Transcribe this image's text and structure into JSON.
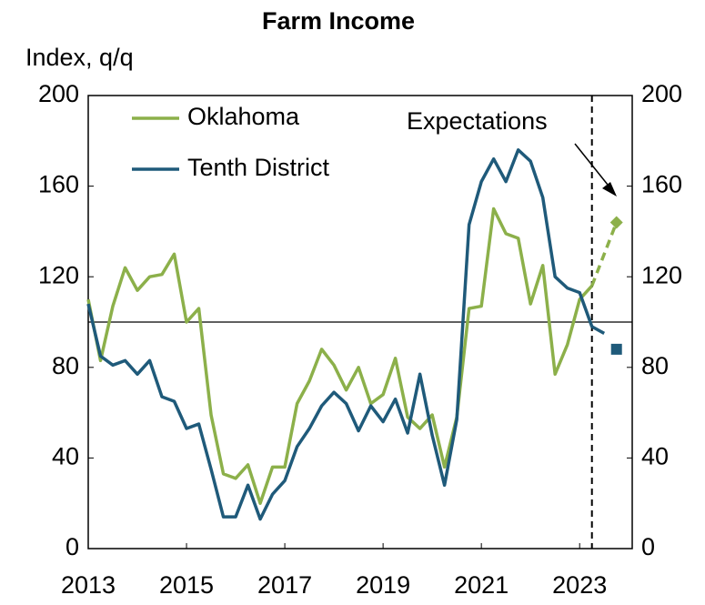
{
  "chart_data": {
    "type": "line",
    "title": "Farm Income",
    "y_label": "Index, q/q",
    "x": [
      2013,
      2013.25,
      2013.5,
      2013.75,
      2014,
      2014.25,
      2014.5,
      2014.75,
      2015,
      2015.25,
      2015.5,
      2015.75,
      2016,
      2016.25,
      2016.5,
      2016.75,
      2017,
      2017.25,
      2017.5,
      2017.75,
      2018,
      2018.25,
      2018.5,
      2018.75,
      2019,
      2019.25,
      2019.5,
      2019.75,
      2020,
      2020.25,
      2020.5,
      2020.75,
      2021,
      2021.25,
      2021.5,
      2021.75,
      2022,
      2022.25,
      2022.5,
      2022.75,
      2023,
      2023.25,
      2023.5
    ],
    "series": [
      {
        "name": "Oklahoma",
        "color": "#8cb04a",
        "values": [
          110,
          83,
          107,
          124,
          114,
          120,
          121,
          130,
          100,
          106,
          59,
          33,
          31,
          37,
          20,
          36,
          36,
          64,
          74,
          88,
          81,
          70,
          80,
          64,
          68,
          84,
          58,
          53,
          59,
          36,
          58,
          106,
          107,
          150,
          139,
          137,
          108,
          125,
          77,
          90,
          110,
          116,
          null
        ]
      },
      {
        "name": "Tenth District",
        "color": "#1f5a7a",
        "values": [
          108,
          85,
          81,
          83,
          77,
          83,
          67,
          65,
          53,
          55,
          35,
          14,
          14,
          28,
          13,
          24,
          30,
          45,
          53,
          63,
          69,
          64,
          52,
          63,
          56,
          66,
          51,
          77,
          50,
          28,
          57,
          143,
          162,
          172,
          162,
          176,
          171,
          155,
          120,
          115,
          113,
          98,
          95
        ]
      }
    ],
    "expectations": {
      "label": "Expectations",
      "x": 2023.75,
      "values": [
        144,
        88
      ]
    },
    "divider_x": 2023.25,
    "reference_y": 100,
    "xlim": [
      2013,
      2024.07
    ],
    "xticks": [
      2013,
      2015,
      2017,
      2019,
      2021,
      2023
    ],
    "ylim": [
      0,
      200
    ],
    "yticks": [
      0,
      40,
      80,
      120,
      160,
      200
    ],
    "y2lim": [
      0,
      200
    ],
    "y2ticks": [
      0,
      40,
      80,
      120,
      160,
      200
    ],
    "legend": "upper left"
  }
}
